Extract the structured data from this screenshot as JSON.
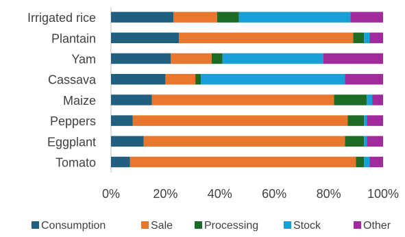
{
  "chart_data": {
    "type": "bar",
    "orientation": "horizontal",
    "stacked": "100%",
    "title": "",
    "xlabel": "",
    "ylabel": "",
    "xlim": [
      0,
      100
    ],
    "x_ticks": [
      "0%",
      "20%",
      "40%",
      "60%",
      "80%",
      "100%"
    ],
    "grid": false,
    "legend_position": "bottom",
    "categories": [
      "Irrigated rice",
      "Plantain",
      "Yam",
      "Cassava",
      "Maize",
      "Peppers",
      "Eggplant",
      "Tomato"
    ],
    "series": [
      {
        "name": "Consumption",
        "color": "#215f7f",
        "values": [
          23,
          25,
          22,
          20,
          15,
          8,
          12,
          7
        ]
      },
      {
        "name": "Sale",
        "color": "#e8762d",
        "values": [
          16,
          64,
          15,
          11,
          67,
          79,
          74,
          83
        ]
      },
      {
        "name": "Processing",
        "color": "#1e6b26",
        "values": [
          8,
          4,
          4,
          2,
          12,
          6,
          7,
          3
        ]
      },
      {
        "name": "Stock",
        "color": "#1aa0d8",
        "values": [
          41,
          2,
          37,
          53,
          2,
          1,
          1,
          2
        ]
      },
      {
        "name": "Other",
        "color": "#a12a9c",
        "values": [
          12,
          5,
          22,
          14,
          4,
          6,
          6,
          5
        ]
      }
    ]
  }
}
